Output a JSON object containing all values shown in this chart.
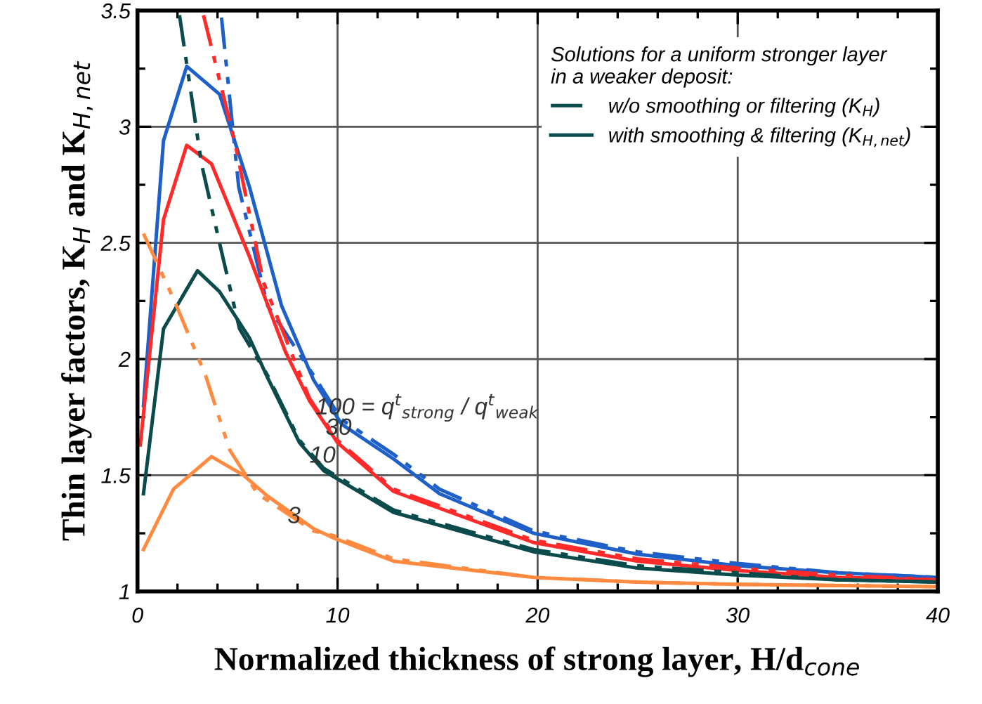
{
  "chart_data": {
    "type": "line",
    "xlabel": "Normalized thickness of strong layer, H/d$_{cone}$",
    "ylabel": "Thin layer factors, K$_{H}$ and K$_{H,net}$",
    "legend_title": "Solutions for a uniform stronger layer\nin a weaker deposit:",
    "legend": "top right",
    "grid": true,
    "marker": "none",
    "xlim": [
      0,
      40
    ],
    "ylim": [
      1,
      3.5
    ],
    "xticks": [
      0,
      {
        "value": 2,
        "label": null
      },
      {
        "value": 4,
        "label": null
      },
      {
        "value": 6,
        "label": null
      },
      {
        "value": 8,
        "label": null
      },
      10,
      {
        "value": 12,
        "label": null
      },
      {
        "value": 14,
        "label": null
      },
      {
        "value": 16,
        "label": null
      },
      {
        "value": 18,
        "label": null
      },
      20,
      {
        "value": 22,
        "label": null
      },
      {
        "value": 24,
        "label": null
      },
      {
        "value": 26,
        "label": null
      },
      {
        "value": 28,
        "label": null
      },
      30,
      {
        "value": 32,
        "label": null
      },
      {
        "value": 34,
        "label": null
      },
      {
        "value": 36,
        "label": null
      },
      {
        "value": 38,
        "label": null
      },
      40
    ],
    "yticks": [
      1,
      {
        "value": 1.25,
        "label": null
      },
      1.5,
      {
        "value": 1.75,
        "label": null
      },
      2,
      {
        "value": 2.25,
        "label": null
      },
      2.5,
      {
        "value": 2.75,
        "label": null
      },
      3,
      {
        "value": 3.25,
        "label": null
      },
      3.5
    ],
    "series": [
      {
        "color": "#1f5fc8",
        "line_style": "dashdot",
        "x": [
          4.2,
          5.06,
          6.5,
          8.8,
          10.2,
          12.8,
          15.1,
          19.8,
          25,
          30,
          35,
          40
        ],
        "values": [
          3.47,
          2.74,
          2.23,
          1.93,
          1.74,
          1.59,
          1.44,
          1.26,
          1.17,
          1.12,
          1.08,
          1.06
        ]
      },
      {
        "color": "#1f5fc8",
        "line_style": "solid",
        "x": [
          0.3,
          1.3,
          2.46,
          4.1,
          5.6,
          7.2,
          8.8,
          10.2,
          12.8,
          15.1,
          19.8,
          25,
          30,
          35,
          40
        ],
        "values": [
          1.8,
          2.94,
          3.26,
          3.14,
          2.74,
          2.23,
          1.91,
          1.72,
          1.57,
          1.42,
          1.25,
          1.16,
          1.11,
          1.08,
          1.06
        ]
      },
      {
        "color": "#ff2a2a",
        "line_style": "dashdot",
        "x": [
          3.3,
          4.85,
          6.3,
          8.6,
          10.0,
          12.8,
          19.8,
          25,
          30,
          35,
          40
        ],
        "values": [
          3.48,
          2.94,
          2.33,
          1.83,
          1.65,
          1.44,
          1.22,
          1.14,
          1.1,
          1.07,
          1.05
        ]
      },
      {
        "color": "#ff2a2a",
        "line_style": "solid",
        "x": [
          0.14,
          1.3,
          2.46,
          3.7,
          5.6,
          7.4,
          8.6,
          10.0,
          12.8,
          19.8,
          25,
          30,
          35,
          40
        ],
        "values": [
          1.63,
          2.6,
          2.92,
          2.84,
          2.44,
          2.03,
          1.82,
          1.64,
          1.43,
          1.21,
          1.13,
          1.09,
          1.06,
          1.05
        ]
      },
      {
        "name": "w/o smoothing or filtering (K$_{H}$)",
        "color": "#0b4b4b",
        "line_style": "dashdot",
        "x": [
          2.1,
          3.2,
          4.1,
          5.1,
          6.5,
          8.1,
          9.3,
          12.8,
          19.8,
          25,
          30,
          35,
          40
        ],
        "values": [
          3.48,
          2.84,
          2.5,
          2.13,
          1.93,
          1.65,
          1.53,
          1.35,
          1.18,
          1.11,
          1.08,
          1.05,
          1.04
        ]
      },
      {
        "name": "with smoothing & filtering (K$_{H,net}$)",
        "color": "#0b4b4b",
        "line_style": "solid",
        "x": [
          0.3,
          1.3,
          3.0,
          4.1,
          5.6,
          6.5,
          8.1,
          9.3,
          12.8,
          19.8,
          25,
          30,
          35,
          40
        ],
        "values": [
          1.42,
          2.13,
          2.38,
          2.29,
          2.09,
          1.92,
          1.64,
          1.52,
          1.34,
          1.17,
          1.1,
          1.07,
          1.05,
          1.04
        ]
      },
      {
        "color": "#ff8a40",
        "line_style": "dashdot",
        "x": [
          0.3,
          1.8,
          3.4,
          4.6,
          6.0,
          8.8,
          9.8,
          12.8,
          19.8,
          25,
          30,
          40
        ],
        "values": [
          2.54,
          2.26,
          1.93,
          1.61,
          1.42,
          1.26,
          1.24,
          1.14,
          1.06,
          1.04,
          1.03,
          1.02
        ]
      },
      {
        "color": "#ff8a40",
        "line_style": "solid",
        "x": [
          0.3,
          1.8,
          3.7,
          5.3,
          6.5,
          8.8,
          9.8,
          12.8,
          19.8,
          25,
          30,
          40
        ],
        "values": [
          1.18,
          1.44,
          1.58,
          1.5,
          1.41,
          1.27,
          1.23,
          1.13,
          1.06,
          1.04,
          1.03,
          1.02
        ]
      }
    ],
    "annotations": [
      {
        "text": "100 = q$^{t}$$_{strong}$ / q$^{t}$$_{weak}$",
        "x": 8.9,
        "y": 1.79
      },
      {
        "text": "30",
        "x": 9.4,
        "y": 1.7
      },
      {
        "text": "10",
        "x": 8.6,
        "y": 1.58
      },
      {
        "text": "3",
        "x": 7.5,
        "y": 1.32
      }
    ]
  }
}
